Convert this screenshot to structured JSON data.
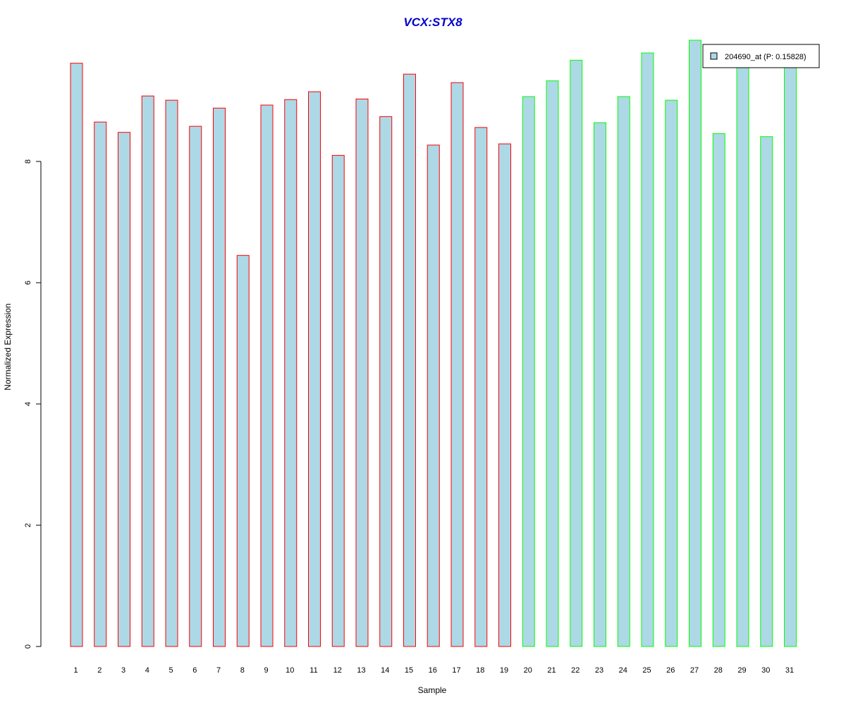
{
  "chart_data": {
    "type": "bar",
    "title": "VCX:STX8",
    "xlabel": "Sample",
    "ylabel": "Normalized Expression",
    "categories": [
      "1",
      "2",
      "3",
      "4",
      "5",
      "6",
      "7",
      "8",
      "9",
      "10",
      "11",
      "12",
      "13",
      "14",
      "15",
      "16",
      "17",
      "18",
      "19",
      "20",
      "21",
      "22",
      "23",
      "24",
      "25",
      "26",
      "27",
      "28",
      "29",
      "30",
      "31"
    ],
    "series": [
      {
        "name": "204690_at (P: 0.15828)",
        "values": [
          9.62,
          8.65,
          8.48,
          9.08,
          9.01,
          8.58,
          8.88,
          6.45,
          8.93,
          9.02,
          9.15,
          8.1,
          9.03,
          8.74,
          9.44,
          8.27,
          9.3,
          8.56,
          8.29,
          9.07,
          9.33,
          9.67,
          8.64,
          9.07,
          9.79,
          9.01,
          10.0,
          8.46,
          9.63,
          8.41,
          9.63
        ]
      }
    ],
    "group_of_sample": [
      1,
      1,
      1,
      1,
      1,
      1,
      1,
      1,
      1,
      1,
      1,
      1,
      1,
      1,
      1,
      1,
      1,
      1,
      1,
      2,
      2,
      2,
      2,
      2,
      2,
      2,
      2,
      2,
      2,
      2,
      2
    ],
    "y_ticks": [
      0,
      2,
      4,
      6,
      8
    ],
    "ylim": [
      0,
      10
    ],
    "grid": false,
    "legend_position": "top-right",
    "colors": {
      "title": "#0000CC",
      "bar_fill": "#ADD8E6",
      "group1_border": "#FF0000",
      "group2_border": "#00FF00",
      "axis": "#000000"
    }
  }
}
